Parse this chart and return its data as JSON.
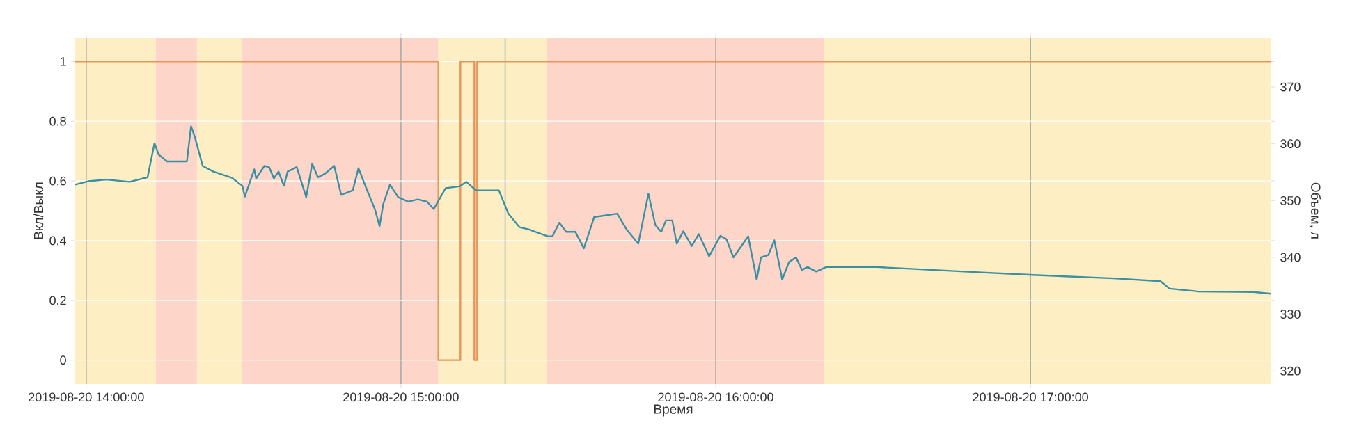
{
  "chart_data": {
    "type": "line",
    "xlabel": "Время",
    "ylabel": "Вкл/Выкл",
    "y2label": "Объем, л",
    "xlim": [
      "2019-08-20T13:57:54",
      "2019-08-20T17:45:54"
    ],
    "ylim": [
      -0.08,
      1.08
    ],
    "y2lim": [
      317.7,
      378.7
    ],
    "xticks": [
      {
        "value": "2019-08-20T14:00",
        "label": "2019-08-20 14:00:00"
      },
      {
        "value": "2019-08-20T15:00",
        "label": "2019-08-20 15:00:00"
      },
      {
        "value": "2019-08-20T16:00",
        "label": "2019-08-20 16:00:00"
      },
      {
        "value": "2019-08-20T17:00",
        "label": "2019-08-20 17:00:00"
      }
    ],
    "yticks": [
      0,
      0.2,
      0.4,
      0.6,
      0.8,
      1
    ],
    "y2ticks": [
      320,
      330,
      340,
      350,
      360,
      370
    ],
    "grid": true,
    "bands": [
      {
        "axis": "x",
        "from": "2019-08-20T13:57:54",
        "to": "2019-08-20T14:13:16",
        "color": "#fdeec3"
      },
      {
        "axis": "x",
        "from": "2019-08-20T14:13:16",
        "to": "2019-08-20T14:21:11",
        "color": "#fdd6c9"
      },
      {
        "axis": "x",
        "from": "2019-08-20T14:21:11",
        "to": "2019-08-20T14:29:38",
        "color": "#fdeec3"
      },
      {
        "axis": "x",
        "from": "2019-08-20T14:29:38",
        "to": "2019-08-20T15:07:08",
        "color": "#fdd6c9"
      },
      {
        "axis": "x",
        "from": "2019-08-20T15:07:08",
        "to": "2019-08-20T15:27:47",
        "color": "#fdeec3"
      },
      {
        "axis": "x",
        "from": "2019-08-20T15:27:47",
        "to": "2019-08-20T16:20:38",
        "color": "#fdd6c9"
      },
      {
        "axis": "x",
        "from": "2019-08-20T16:20:38",
        "to": "2019-08-20T17:45:54",
        "color": "#fdeec3"
      }
    ],
    "ref_lines": [
      {
        "axis": "x",
        "value": "2019-08-20T15:19:52",
        "color": "#c8c8c8"
      }
    ],
    "series": [
      {
        "type": "step",
        "color": "#e8955a",
        "x": [
          "2019-08-20T13:57:54",
          "2019-08-20T15:07:08",
          "2019-08-20T15:11:20",
          "2019-08-20T15:13:59",
          "2019-08-20T15:14:31",
          "2019-08-20T17:45:54"
        ],
        "values": [
          1,
          0,
          1,
          0,
          1,
          1
        ]
      },
      {
        "axis": "y2",
        "color": "#3a8fa3",
        "x": [
          "2019-08-20T13:57:54",
          "2019-08-20T14:00:22",
          "2019-08-20T14:03:54",
          "2019-08-20T14:08:17",
          "2019-08-20T14:11:42",
          "2019-08-20T14:13:01",
          "2019-08-20T14:13:48",
          "2019-08-20T14:15:25",
          "2019-08-20T14:19:12",
          "2019-08-20T14:19:59",
          "2019-08-20T14:20:42",
          "2019-08-20T14:22:12",
          "2019-08-20T14:24:14",
          "2019-08-20T14:27:47",
          "2019-08-20T14:29:46",
          "2019-08-20T14:30:14",
          "2019-08-20T14:32:02",
          "2019-08-20T14:32:24",
          "2019-08-20T14:33:58",
          "2019-08-20T14:34:52",
          "2019-08-20T14:35:46",
          "2019-08-20T14:36:40",
          "2019-08-20T14:37:41",
          "2019-08-20T14:38:24",
          "2019-08-20T14:40:08",
          "2019-08-20T14:41:56",
          "2019-08-20T14:43:05",
          "2019-08-20T14:44:10",
          "2019-08-20T14:45:29",
          "2019-08-20T14:47:17",
          "2019-08-20T14:48:36",
          "2019-08-20T14:50:49",
          "2019-08-20T14:51:54",
          "2019-08-20T14:53:28",
          "2019-08-20T14:55:01",
          "2019-08-20T14:55:55",
          "2019-08-20T14:56:38",
          "2019-08-20T14:57:54",
          "2019-08-20T14:59:28",
          "2019-08-20T15:01:23",
          "2019-08-20T15:03:11",
          "2019-08-20T15:04:59",
          "2019-08-20T15:06:14",
          "2019-08-20T15:08:31",
          "2019-08-20T15:11:10",
          "2019-08-20T15:12:29",
          "2019-08-20T15:14:17",
          "2019-08-20T15:18:40",
          "2019-08-20T15:20:28",
          "2019-08-20T15:22:37",
          "2019-08-20T15:24:25",
          "2019-08-20T15:27:58",
          "2019-08-20T15:28:52",
          "2019-08-20T15:30:11",
          "2019-08-20T15:31:30",
          "2019-08-20T15:33:14",
          "2019-08-20T15:34:52",
          "2019-08-20T15:36:50",
          "2019-08-20T15:41:13",
          "2019-08-20T15:43:01",
          "2019-08-20T15:45:14",
          "2019-08-20T15:47:10",
          "2019-08-20T15:48:29",
          "2019-08-20T15:49:37",
          "2019-08-20T15:50:31",
          "2019-08-20T15:51:43",
          "2019-08-20T15:52:34",
          "2019-08-20T15:53:49",
          "2019-08-20T15:55:26",
          "2019-08-20T15:56:46",
          "2019-08-20T15:58:44",
          "2019-08-20T16:00:54",
          "2019-08-20T16:02:02",
          "2019-08-20T16:03:22",
          "2019-08-20T16:06:11",
          "2019-08-20T16:07:48",
          "2019-08-20T16:08:38",
          "2019-08-20T16:10:01",
          "2019-08-20T16:11:10",
          "2019-08-20T16:12:40",
          "2019-08-20T16:13:59",
          "2019-08-20T16:15:18",
          "2019-08-20T16:16:26",
          "2019-08-20T16:17:31",
          "2019-08-20T16:19:08",
          "2019-08-20T16:21:04",
          "2019-08-20T16:30:47",
          "2019-08-20T16:32:35",
          "2019-08-20T16:49:23",
          "2019-08-20T17:00:29",
          "2019-08-20T17:15:54",
          "2019-08-20T17:24:47",
          "2019-08-20T17:26:31",
          "2019-08-20T17:31:52",
          "2019-08-20T17:42:29",
          "2019-08-20T17:45:54"
        ],
        "values": [
          352.8,
          353.4,
          353.7,
          353.3,
          354.1,
          360.1,
          358.1,
          356.9,
          356.9,
          363.1,
          361.2,
          356.1,
          355.1,
          354.0,
          352.6,
          350.7,
          355.5,
          353.9,
          356.1,
          355.9,
          353.9,
          355.1,
          352.6,
          355.1,
          355.9,
          350.6,
          356.5,
          354.1,
          354.7,
          356.1,
          351.0,
          351.8,
          355.7,
          352.0,
          348.5,
          345.5,
          349.4,
          352.8,
          350.6,
          349.8,
          350.2,
          349.8,
          348.5,
          352.2,
          352.5,
          353.3,
          351.8,
          351.8,
          347.7,
          345.3,
          344.9,
          343.7,
          343.7,
          346.1,
          344.5,
          344.5,
          341.6,
          347.1,
          347.7,
          344.9,
          342.4,
          351.2,
          345.7,
          344.5,
          346.5,
          346.5,
          342.4,
          344.6,
          342.0,
          344.1,
          340.2,
          343.8,
          343.2,
          340.0,
          343.7,
          336.1,
          340.0,
          340.4,
          343.0,
          336.1,
          339.2,
          340.0,
          337.8,
          338.3,
          337.5,
          338.3,
          338.3,
          338.2,
          337.4,
          336.9,
          336.3,
          335.8,
          334.5,
          334.0,
          333.9,
          333.6
        ]
      }
    ]
  }
}
